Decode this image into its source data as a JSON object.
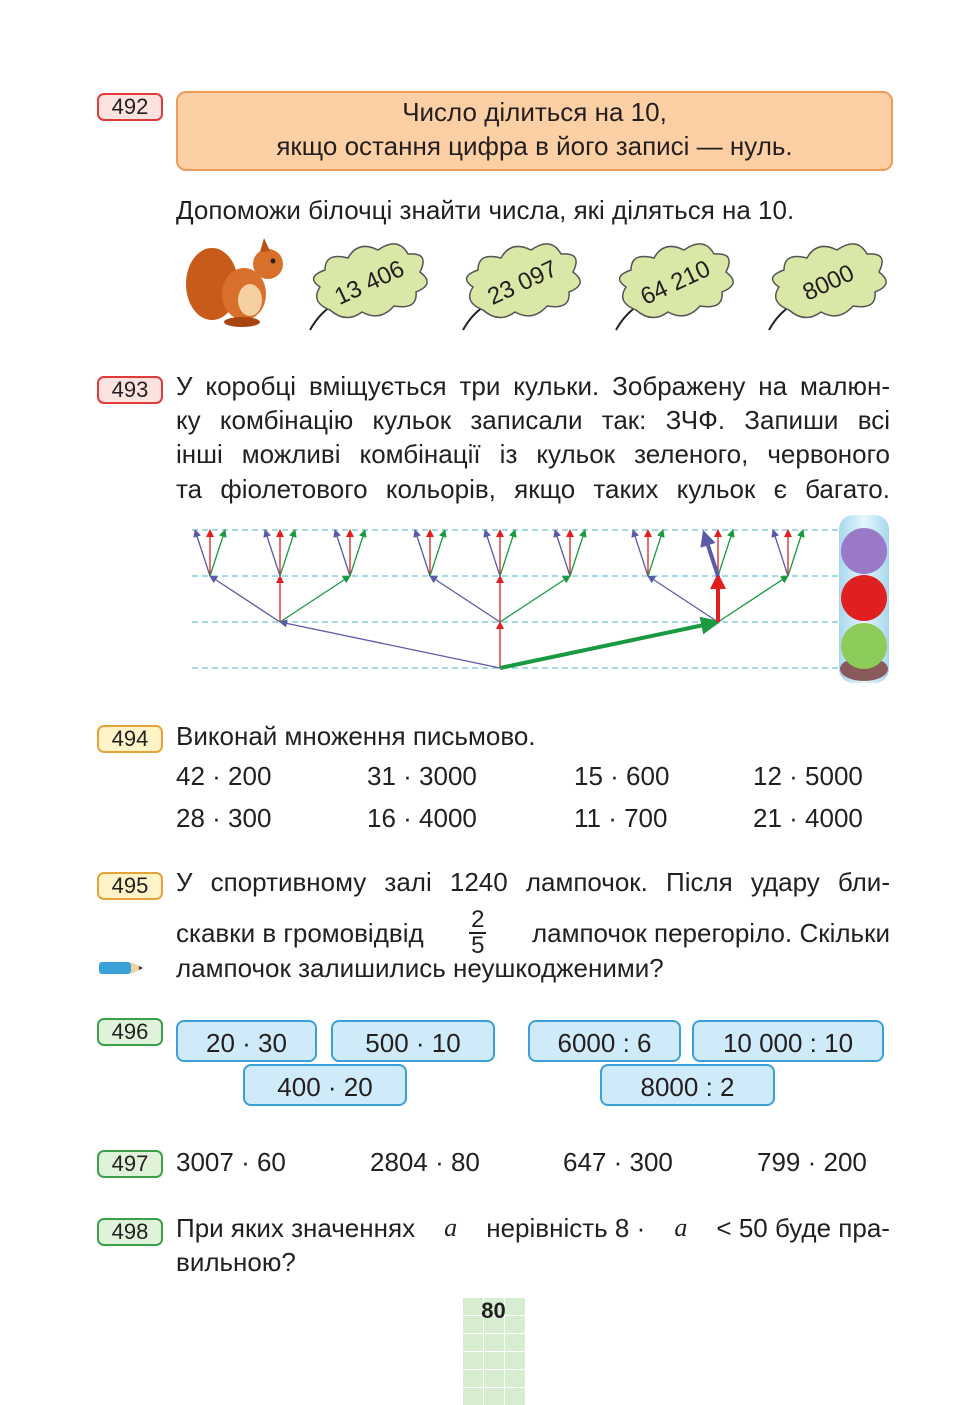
{
  "exercises": [
    {
      "number": "492",
      "rule": [
        "Число ділиться на 10,",
        "якщо остання цифра в його записі — нуль."
      ],
      "task": "Допоможи білочці знайти числа, які діляться на 10.",
      "leaves": [
        "13 406",
        "23 097",
        "64 210",
        "8000"
      ]
    },
    {
      "number": "493",
      "lines": [
        "У коробці вміщується три кульки. Зображену на малюн-",
        "ку комбінацію кульок записали так: ЗЧФ. Запиши всі",
        "інші можливі комбінації із кульок зеленого, червоного",
        "та фіолетового кольорів, якщо таких кульок є багато."
      ]
    },
    {
      "number": "494",
      "task": "Виконай множення письмово.",
      "rows": [
        [
          "42 · 200",
          "31 · 3000",
          "15 · 600",
          "12 · 5000"
        ],
        [
          "28 · 300",
          "16 · 4000",
          "11 · 700",
          "21 · 4000"
        ]
      ]
    },
    {
      "number": "495",
      "line1": "У спортивному залі 1240 лампочок. Після удару бли-",
      "line2_start": "скавки в громовідвід",
      "numerator": "2",
      "denominator": "5",
      "line2_end": "лампочок перегоріло. Скільки",
      "line3": "лампочок залишились неушкодженими?"
    },
    {
      "number": "496",
      "boxes": [
        "20 · 30",
        "500 · 10",
        "400 · 20",
        "6000 : 6",
        "10 000 : 10",
        "8000 : 2"
      ]
    },
    {
      "number": "497",
      "expressions": [
        "3007 · 60",
        "2804 · 80",
        "647 · 300",
        "799 · 200"
      ]
    },
    {
      "number": "498",
      "parts": [
        "При яких значеннях",
        "a",
        "нерівність 8 ·",
        "a",
        "< 50 буде пра-"
      ],
      "line2": "вильною?"
    }
  ],
  "page_number": "80"
}
